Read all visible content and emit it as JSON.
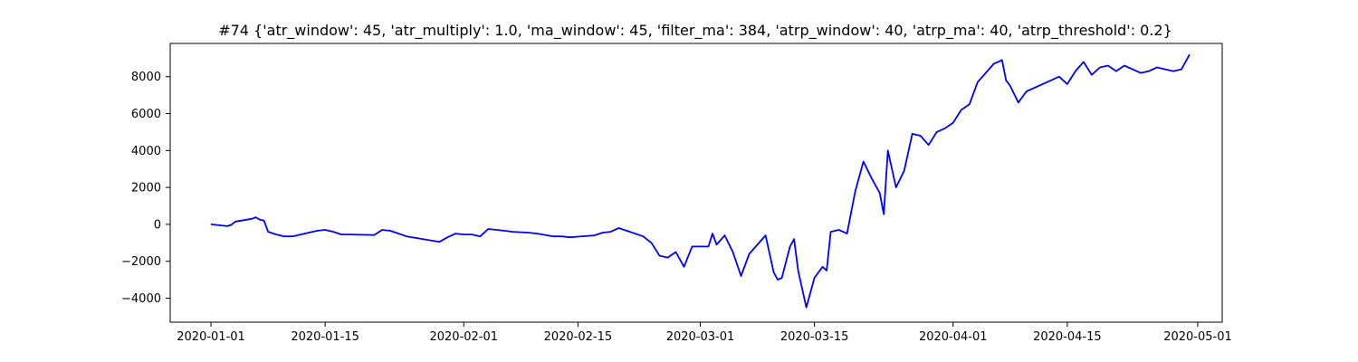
{
  "chart_data": {
    "type": "line",
    "title": "#74 {'atr_window': 45, 'atr_multiply': 1.0, 'ma_window': 45, 'filter_ma': 384, 'atrp_window': 40, 'atrp_ma': 40, 'atrp_threshold': 0.2}",
    "xlabel": "",
    "ylabel": "",
    "grid": false,
    "line_color": "#0000ff",
    "xlim": [
      "2019-12-27",
      "2020-05-04"
    ],
    "ylim": [
      -5300,
      9800
    ],
    "x_ticks": [
      "2020-01-01",
      "2020-01-15",
      "2020-02-01",
      "2020-02-15",
      "2020-03-01",
      "2020-03-15",
      "2020-04-01",
      "2020-04-15",
      "2020-05-01"
    ],
    "y_ticks": [
      -4000,
      -2000,
      0,
      2000,
      4000,
      6000,
      8000
    ],
    "series": [
      {
        "x": [
          "2020-01-01",
          "2020-01-02",
          "2020-01-03",
          "2020-01-03T12:00",
          "2020-01-04",
          "2020-01-06",
          "2020-01-06T12:00",
          "2020-01-07",
          "2020-01-07T12:00",
          "2020-01-08",
          "2020-01-09",
          "2020-01-10",
          "2020-01-11",
          "2020-01-14",
          "2020-01-15",
          "2020-01-16",
          "2020-01-17",
          "2020-01-18",
          "2020-01-21",
          "2020-01-22",
          "2020-01-23",
          "2020-01-24",
          "2020-01-25",
          "2020-01-29",
          "2020-01-30",
          "2020-01-31",
          "2020-02-01",
          "2020-02-02",
          "2020-02-03",
          "2020-02-04",
          "2020-02-05",
          "2020-02-06",
          "2020-02-07",
          "2020-02-09",
          "2020-02-10",
          "2020-02-12",
          "2020-02-13",
          "2020-02-14",
          "2020-02-17",
          "2020-02-18",
          "2020-02-19",
          "2020-02-20",
          "2020-02-21",
          "2020-02-23",
          "2020-02-24",
          "2020-02-25",
          "2020-02-26",
          "2020-02-27",
          "2020-02-28",
          "2020-02-29",
          "2020-03-02",
          "2020-03-02T12:00",
          "2020-03-03",
          "2020-03-04",
          "2020-03-05",
          "2020-03-06",
          "2020-03-07",
          "2020-03-09",
          "2020-03-10",
          "2020-03-10T12:00",
          "2020-03-11",
          "2020-03-12",
          "2020-03-12T12:00",
          "2020-03-13",
          "2020-03-14",
          "2020-03-15",
          "2020-03-16",
          "2020-03-16T12:00",
          "2020-03-17",
          "2020-03-18",
          "2020-03-19",
          "2020-03-20",
          "2020-03-21",
          "2020-03-22",
          "2020-03-23",
          "2020-03-23T12:00",
          "2020-03-24",
          "2020-03-25",
          "2020-03-26",
          "2020-03-27",
          "2020-03-28",
          "2020-03-29",
          "2020-03-30",
          "2020-03-31",
          "2020-04-01",
          "2020-04-02",
          "2020-04-03",
          "2020-04-04",
          "2020-04-06",
          "2020-04-07",
          "2020-04-07T12:00",
          "2020-04-08",
          "2020-04-09",
          "2020-04-10",
          "2020-04-13",
          "2020-04-14",
          "2020-04-15",
          "2020-04-16",
          "2020-04-17",
          "2020-04-18",
          "2020-04-19",
          "2020-04-20",
          "2020-04-21",
          "2020-04-22",
          "2020-04-23",
          "2020-04-24",
          "2020-04-25",
          "2020-04-26",
          "2020-04-28",
          "2020-04-29",
          "2020-04-30"
        ],
        "values": [
          0,
          -50,
          -100,
          -20,
          150,
          300,
          380,
          250,
          200,
          -400,
          -550,
          -650,
          -650,
          -350,
          -300,
          -400,
          -550,
          -550,
          -580,
          -300,
          -350,
          -500,
          -650,
          -950,
          -700,
          -500,
          -550,
          -550,
          -650,
          -250,
          -300,
          -350,
          -400,
          -450,
          -500,
          -650,
          -650,
          -700,
          -600,
          -450,
          -400,
          -200,
          -350,
          -650,
          -1000,
          -1700,
          -1800,
          -1500,
          -2300,
          -1200,
          -1200,
          -500,
          -1100,
          -600,
          -1500,
          -2800,
          -1600,
          -600,
          -2600,
          -3000,
          -2900,
          -1200,
          -800,
          -2500,
          -4500,
          -2900,
          -2300,
          -2500,
          -400,
          -300,
          -500,
          1800,
          3400,
          2500,
          1700,
          550,
          4000,
          2000,
          2900,
          4900,
          4800,
          4300,
          5000,
          5200,
          5500,
          6200,
          6500,
          7700,
          8700,
          8900,
          7800,
          7500,
          6600,
          7200,
          7800,
          8000,
          7600,
          8300,
          8800,
          8100,
          8500,
          8600,
          8300,
          8600,
          8400,
          8200,
          8300,
          8500,
          8300,
          8400,
          9200
        ]
      }
    ]
  }
}
